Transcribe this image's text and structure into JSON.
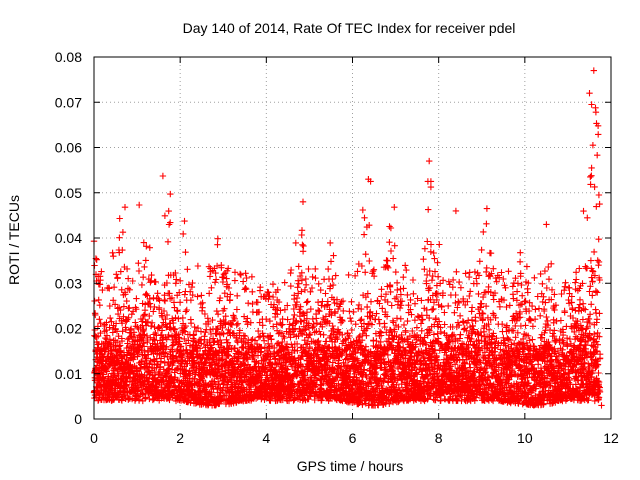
{
  "chart_data": {
    "type": "scatter",
    "title": "Day 140 of 2014, Rate Of TEC Index for receiver pdel",
    "xlabel": "GPS time / hours",
    "ylabel": "ROTI / TECUs",
    "xlim": [
      0,
      12
    ],
    "ylim": [
      0,
      0.08
    ],
    "xticks": [
      0,
      2,
      4,
      6,
      8,
      10,
      12
    ],
    "xtick_labels": [
      "0",
      "2",
      "4",
      "6",
      "8",
      "10",
      "12"
    ],
    "yticks": [
      0,
      0.01,
      0.02,
      0.03,
      0.04,
      0.05,
      0.06,
      0.07,
      0.08
    ],
    "ytick_labels": [
      "0",
      "0.01",
      "0.02",
      "0.03",
      "0.04",
      "0.05",
      "0.06",
      "0.07",
      "0.08"
    ],
    "grid": true,
    "marker": "+",
    "color": "#ff0000",
    "x_end": 11.75,
    "series": [
      {
        "name": "ROTI",
        "note": "dense scatter; baseline ~0.005-0.015 with bursts; peak points listed below",
        "burst_centers": [
          0.05,
          0.6,
          1.2,
          1.7,
          2.1,
          2.9,
          3.1,
          4.8,
          5.5,
          6.3,
          6.9,
          7.8,
          9.1,
          9.9,
          10.5,
          11.2,
          11.6
        ],
        "burst_peaks": [
          0.039,
          0.047,
          0.047,
          0.05,
          0.044,
          0.043,
          0.043,
          0.048,
          0.04,
          0.053,
          0.047,
          0.057,
          0.046,
          0.04,
          0.043,
          0.037,
          0.077
        ],
        "peak_points": [
          {
            "x": 1.6,
            "y": 0.0537
          },
          {
            "x": 1.77,
            "y": 0.0497
          },
          {
            "x": 6.37,
            "y": 0.053
          },
          {
            "x": 6.42,
            "y": 0.0525
          },
          {
            "x": 7.78,
            "y": 0.057
          },
          {
            "x": 7.82,
            "y": 0.0525
          },
          {
            "x": 11.5,
            "y": 0.072
          },
          {
            "x": 11.6,
            "y": 0.077
          },
          {
            "x": 11.55,
            "y": 0.0695
          },
          {
            "x": 11.65,
            "y": 0.0678
          },
          {
            "x": 11.7,
            "y": 0.0648
          },
          {
            "x": 11.68,
            "y": 0.0583
          },
          {
            "x": 11.55,
            "y": 0.0555
          },
          {
            "x": 11.52,
            "y": 0.0535
          },
          {
            "x": 11.62,
            "y": 0.0513
          },
          {
            "x": 11.72,
            "y": 0.0495
          },
          {
            "x": 11.58,
            "y": 0.0605
          },
          {
            "x": 0.0,
            "y": 0.0393
          },
          {
            "x": 0.72,
            "y": 0.0468
          },
          {
            "x": 1.05,
            "y": 0.0473
          },
          {
            "x": 4.85,
            "y": 0.048
          },
          {
            "x": 6.97,
            "y": 0.0468
          },
          {
            "x": 7.75,
            "y": 0.0525
          },
          {
            "x": 8.4,
            "y": 0.046
          },
          {
            "x": 9.12,
            "y": 0.0465
          },
          {
            "x": 10.5,
            "y": 0.043
          },
          {
            "x": 11.78,
            "y": 0.003
          }
        ]
      }
    ]
  }
}
